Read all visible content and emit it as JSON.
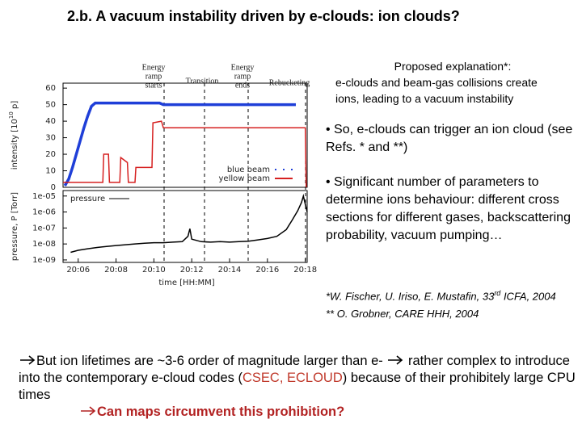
{
  "title": "2.b. A vacuum instability driven by e-clouds: ion clouds?",
  "explanation": {
    "heading": "Proposed explanation*:",
    "lines": [
      "e-clouds and beam-gas collisions create",
      "ions, leading to a vacuum instability"
    ]
  },
  "bullets": [
    "• So, e-clouds can trigger an ion cloud (see Refs. * and **)",
    "• Significant number of parameters to determine ions behaviour: different cross sections for different gases, backscattering probability, vacuum pumping…"
  ],
  "refs": [
    [
      "*W. Fischer, U. Iriso, E. Mustafin, 33",
      "rd",
      " ICFA, 2004"
    ],
    [
      "** O. Grobner, CARE HHH, 2004"
    ]
  ],
  "conclusion": {
    "text1": "But ion lifetimes are ~3-6 order of magnitude larger than e-",
    "text2": " rather complex to introduce into the contemporary e-cloud codes (",
    "codes": "CSEC, ECLOUD",
    "text3": ") because of their prohibitely large CPU times",
    "question": "Can maps circumvent this prohibition?"
  },
  "annotations": [
    [
      "Energy",
      "ramp",
      "starts"
    ],
    [
      "Transition"
    ],
    [
      "Energy",
      "ramp",
      "ends"
    ],
    [
      "Rebucketing"
    ]
  ],
  "chart_data": [
    {
      "type": "line",
      "ylabel": [
        "intensity [10",
        "10",
        " p]"
      ],
      "xlim": [
        5.2,
        18.1
      ],
      "ylim": [
        0,
        63
      ],
      "yticks": [
        0,
        10,
        20,
        30,
        40,
        50,
        60
      ],
      "legend": "lower right",
      "series": [
        {
          "name": "blue beam",
          "color": "#1f3fd8",
          "x": [
            5.3,
            5.5,
            5.7,
            5.9,
            6.1,
            6.3,
            6.5,
            6.7,
            6.9,
            7,
            8,
            9,
            10,
            10.3,
            10.5,
            11,
            12,
            13,
            14,
            15,
            16,
            17,
            17.5
          ],
          "values": [
            1,
            5,
            12,
            20,
            28,
            36,
            43,
            49,
            51,
            51,
            51,
            51,
            51,
            51,
            50,
            50,
            50,
            50,
            50,
            50,
            50,
            50,
            50
          ]
        },
        {
          "name": "yellow beam",
          "color": "#d62020",
          "x": [
            5.2,
            7.3,
            7.35,
            7.6,
            7.65,
            8.2,
            8.25,
            8.6,
            8.65,
            9.0,
            9.05,
            9.9,
            9.95,
            10.4,
            10.5,
            18.0,
            18.05
          ],
          "values": [
            3,
            3,
            20,
            20,
            3,
            3,
            18,
            15,
            3,
            3,
            12,
            12,
            39,
            40,
            36,
            36,
            0
          ]
        }
      ]
    },
    {
      "type": "line",
      "ylabel": [
        "pressure, P [Torr]"
      ],
      "xlabel": "time [HH:MM]",
      "log": true,
      "xlim": [
        5.2,
        18.1
      ],
      "ylim": [
        7e-10,
        2.2e-05
      ],
      "yticks": [
        {
          "value": 1e-09,
          "label": "1e-09"
        },
        {
          "value": 1e-08,
          "label": "1e-08"
        },
        {
          "value": 1e-07,
          "label": "1e-07"
        },
        {
          "value": 1e-06,
          "label": "1e-06"
        },
        {
          "value": 1e-05,
          "label": "1e-05"
        }
      ],
      "xticks": [
        {
          "value": 6,
          "label": "20:06"
        },
        {
          "value": 8,
          "label": "20:08"
        },
        {
          "value": 10,
          "label": "20:10"
        },
        {
          "value": 12,
          "label": "20:12"
        },
        {
          "value": 14,
          "label": "20:14"
        },
        {
          "value": 16,
          "label": "20:16"
        },
        {
          "value": 18,
          "label": "20:18"
        }
      ],
      "legend": "upper left",
      "series": [
        {
          "name": "pressure",
          "color": "#000000",
          "x": [
            5.6,
            6.0,
            6.5,
            7,
            7.5,
            8,
            8.5,
            9,
            9.5,
            10,
            10.5,
            11,
            11.5,
            11.8,
            11.9,
            12,
            12.5,
            13,
            13.5,
            14,
            14.5,
            15,
            15.5,
            16,
            16.5,
            17,
            17.3,
            17.6,
            17.8,
            17.9,
            18,
            18.1
          ],
          "values": [
            3e-09,
            4e-09,
            5e-09,
            6e-09,
            7e-09,
            8e-09,
            9e-09,
            1e-08,
            1.1e-08,
            1.2e-08,
            1.2e-08,
            1.3e-08,
            1.4e-08,
            3e-08,
            9e-08,
            2e-08,
            1.4e-08,
            1.3e-08,
            1.4e-08,
            1.3e-08,
            1.4e-08,
            1.5e-08,
            1.8e-08,
            2.2e-08,
            3e-08,
            8e-08,
            3e-07,
            1.2e-06,
            4e-06,
            1e-05,
            3e-06,
            1e-06
          ]
        }
      ]
    }
  ]
}
